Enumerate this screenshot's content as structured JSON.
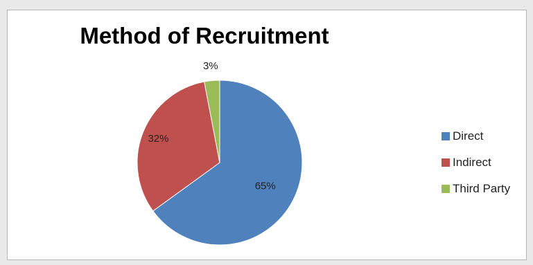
{
  "chart_data": {
    "type": "pie",
    "title": "Method of Recruitment",
    "categories": [
      "Direct",
      "Indirect",
      "Third Party"
    ],
    "values": [
      65,
      32,
      3
    ],
    "labels": [
      "65%",
      "32%",
      "3%"
    ],
    "colors": [
      "#4f81bd",
      "#c0504d",
      "#9bbb59"
    ],
    "legend_position": "right"
  }
}
